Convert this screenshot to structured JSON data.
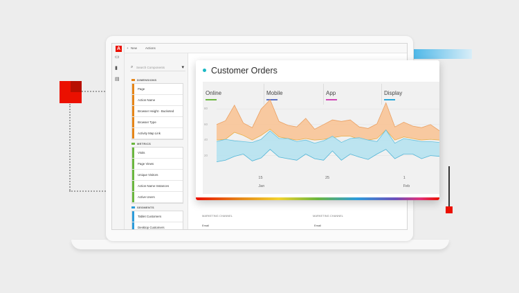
{
  "app": {
    "logo_letter": "A",
    "toolbar": {
      "new_label": "New",
      "actions_label": "Actions"
    },
    "rail_icons": [
      "panel-icon",
      "bar-chart-icon",
      "table-icon"
    ]
  },
  "components": {
    "search_placeholder": "Search Components",
    "sections": [
      {
        "title": "DIMENSIONS",
        "items": [
          "Page",
          "Action Name",
          "Browser Height - Bucketed",
          "Browser Type",
          "Activity Map Link"
        ]
      },
      {
        "title": "METRICS",
        "items": [
          "Visits",
          "Page Views",
          "Unique Visitors",
          "Action Name Instances",
          "Active Users"
        ]
      },
      {
        "title": "SEGMENTS",
        "items": [
          "Tablet Customers",
          "Desktop Customers"
        ]
      }
    ]
  },
  "bottom_table": {
    "col1_header": "MARKETING CHANNEL",
    "col1_value": "Email",
    "col2_header": "MARKETING CHANNEL",
    "col2_value": "Email"
  },
  "card": {
    "title": "Customer Orders",
    "accent_color": "#1ab8c4"
  },
  "chart_data": {
    "type": "area",
    "title": "Customer Orders",
    "legend": [
      {
        "name": "Online",
        "color": "#6bb73f"
      },
      {
        "name": "Mobile",
        "color": "#5b6fc2"
      },
      {
        "name": "App",
        "color": "#d048b6"
      },
      {
        "name": "Display",
        "color": "#2aa7d8"
      }
    ],
    "y_ticks": [
      "80",
      "60",
      "40",
      "20"
    ],
    "x_ticks": [
      "15",
      "Jan",
      "25",
      "Feb",
      "1"
    ],
    "x_tick_positions": [
      0.2,
      0.2,
      0.5,
      0.85,
      0.85
    ],
    "series": [
      {
        "name": "upper",
        "color": "#f8c497",
        "top": [
          60,
          65,
          85,
          62,
          56,
          80,
          92,
          64,
          59,
          57,
          68,
          54,
          60,
          66,
          64,
          66,
          57,
          55,
          61,
          88,
          57,
          63,
          58,
          56,
          60,
          52
        ],
        "bottom": [
          40,
          41,
          50,
          46,
          40,
          46,
          54,
          44,
          42,
          40,
          42,
          40,
          41,
          43,
          45,
          45,
          41,
          40,
          42,
          53,
          40,
          44,
          42,
          40,
          41,
          40
        ]
      },
      {
        "name": "lower",
        "color": "#b6e2f0",
        "top": [
          38,
          41,
          39,
          38,
          37,
          41,
          52,
          42,
          42,
          38,
          40,
          36,
          39,
          45,
          37,
          42,
          43,
          40,
          38,
          53,
          36,
          42,
          40,
          38,
          38,
          37
        ],
        "bottom": [
          12,
          14,
          19,
          22,
          13,
          17,
          28,
          18,
          16,
          14,
          22,
          16,
          14,
          26,
          14,
          22,
          18,
          15,
          22,
          28,
          16,
          22,
          22,
          16,
          20,
          19
        ]
      }
    ],
    "ylim": [
      0,
      100
    ]
  }
}
